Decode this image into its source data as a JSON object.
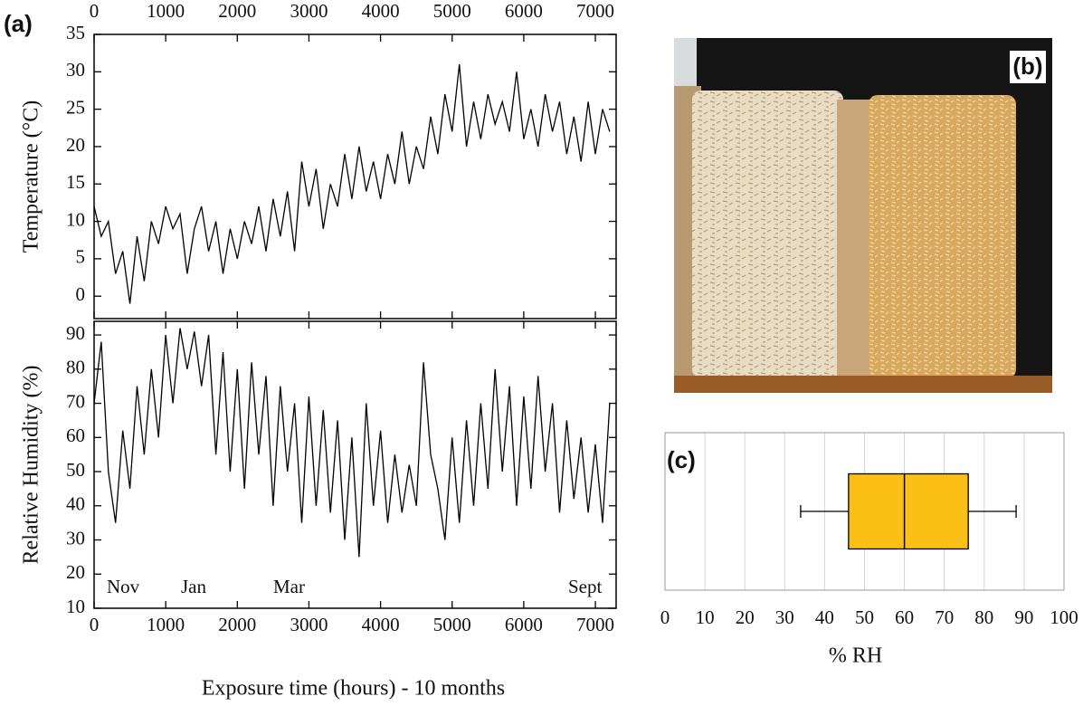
{
  "chart_data": [
    {
      "type": "line",
      "panel_label": "(a)",
      "y_label": "Temperature (°C)",
      "xaxis_position": "top",
      "x": [
        0,
        100,
        200,
        300,
        400,
        500,
        600,
        700,
        800,
        900,
        1000,
        1100,
        1200,
        1300,
        1400,
        1500,
        1600,
        1700,
        1800,
        1900,
        2000,
        2100,
        2200,
        2300,
        2400,
        2500,
        2600,
        2700,
        2800,
        2900,
        3000,
        3100,
        3200,
        3300,
        3400,
        3500,
        3600,
        3700,
        3800,
        3900,
        4000,
        4100,
        4200,
        4300,
        4400,
        4500,
        4600,
        4700,
        4800,
        4900,
        5000,
        5100,
        5200,
        5300,
        5400,
        5500,
        5600,
        5700,
        5800,
        5900,
        6000,
        6100,
        6200,
        6300,
        6400,
        6500,
        6600,
        6700,
        6800,
        6900,
        7000,
        7100,
        7200
      ],
      "series": [
        {
          "color": "#000000",
          "values": [
            12,
            8,
            10,
            3,
            6,
            -1,
            8,
            2,
            10,
            7,
            12,
            9,
            11,
            3,
            9,
            12,
            6,
            10,
            3,
            9,
            5,
            10,
            7,
            12,
            6,
            13,
            8,
            14,
            6,
            18,
            12,
            17,
            9,
            15,
            12,
            19,
            13,
            20,
            14,
            18,
            13,
            19,
            15,
            22,
            15,
            20,
            17,
            24,
            19,
            27,
            22,
            31,
            20,
            26,
            21,
            27,
            23,
            26,
            22,
            30,
            21,
            25,
            20,
            27,
            22,
            26,
            19,
            24,
            18,
            26,
            19,
            25,
            22
          ]
        }
      ],
      "xlim": [
        0,
        7290
      ],
      "xticks": [
        0,
        1000,
        2000,
        3000,
        4000,
        5000,
        6000,
        7000
      ],
      "ylim": [
        -3,
        35
      ],
      "yticks": [
        0,
        5,
        10,
        15,
        20,
        25,
        30,
        35
      ]
    },
    {
      "type": "line",
      "y_label": "Relative Humidity (%)",
      "x_label": "Exposure time (hours) - 10 months",
      "xaxis_position": "bottom",
      "annotations": [
        "Nov",
        "Jan",
        "Mar",
        "Sept"
      ],
      "x": [
        0,
        100,
        200,
        300,
        400,
        500,
        600,
        700,
        800,
        900,
        1000,
        1100,
        1200,
        1300,
        1400,
        1500,
        1600,
        1700,
        1800,
        1900,
        2000,
        2100,
        2200,
        2300,
        2400,
        2500,
        2600,
        2700,
        2800,
        2900,
        3000,
        3100,
        3200,
        3300,
        3400,
        3500,
        3600,
        3700,
        3800,
        3900,
        4000,
        4100,
        4200,
        4300,
        4400,
        4500,
        4600,
        4700,
        4800,
        4900,
        5000,
        5100,
        5200,
        5300,
        5400,
        5500,
        5600,
        5700,
        5800,
        5900,
        6000,
        6100,
        6200,
        6300,
        6400,
        6500,
        6600,
        6700,
        6800,
        6900,
        7000,
        7100,
        7200
      ],
      "series": [
        {
          "color": "#000000",
          "values": [
            70,
            88,
            50,
            35,
            62,
            45,
            75,
            55,
            80,
            60,
            90,
            70,
            92,
            80,
            91,
            75,
            90,
            55,
            85,
            50,
            80,
            45,
            82,
            55,
            78,
            40,
            75,
            50,
            70,
            35,
            72,
            40,
            68,
            38,
            65,
            30,
            60,
            25,
            70,
            40,
            62,
            35,
            55,
            38,
            52,
            40,
            82,
            55,
            45,
            30,
            60,
            35,
            65,
            40,
            70,
            45,
            80,
            50,
            75,
            40,
            72,
            45,
            78,
            50,
            70,
            38,
            65,
            42,
            60,
            38,
            58,
            35,
            70
          ]
        }
      ],
      "xlim": [
        0,
        7290
      ],
      "xticks": [
        0,
        1000,
        2000,
        3000,
        4000,
        5000,
        6000,
        7000
      ],
      "ylim": [
        10,
        94
      ],
      "yticks": [
        10,
        20,
        30,
        40,
        50,
        60,
        70,
        80,
        90
      ]
    },
    {
      "type": "box",
      "panel_label": "(c)",
      "x_label": "% RH",
      "color": "#fbbf16",
      "whisker_low": 34,
      "q1": 46,
      "median": 60,
      "q3": 76,
      "whisker_high": 88,
      "xlim": [
        0,
        100
      ],
      "xticks": [
        0,
        10,
        20,
        30,
        40,
        50,
        60,
        70,
        80,
        90,
        100
      ],
      "grid": true
    }
  ],
  "photo": {
    "label": "(b)"
  }
}
